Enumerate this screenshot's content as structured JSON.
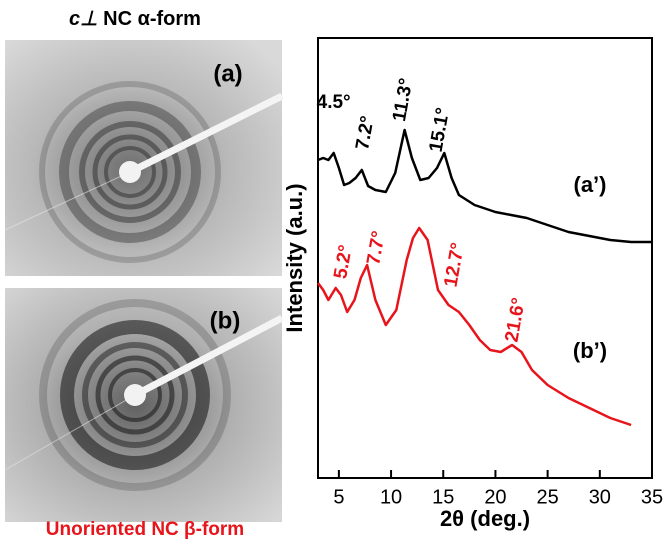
{
  "caption_top": {
    "symbol": "c⊥",
    "text": "NC α-form"
  },
  "images": [
    {
      "label": "(a)"
    },
    {
      "label": "(b)"
    }
  ],
  "caption_bottom": "Unoriented NC β-form",
  "chart_data": {
    "type": "line",
    "xlabel": "2θ (deg.)",
    "ylabel": "Intensity (a.u.)",
    "xlim": [
      3,
      35
    ],
    "xticks": [
      5,
      10,
      15,
      20,
      25,
      30,
      35
    ],
    "ylim": [
      0,
      440
    ],
    "series": [
      {
        "name": "(a’)",
        "color": "#000000",
        "x": [
          3,
          3.5,
          4,
          4.5,
          5,
          5.5,
          6,
          6.6,
          7.2,
          7.8,
          8.5,
          9.5,
          10.4,
          11.3,
          12,
          12.8,
          13.6,
          14.4,
          15.1,
          15.8,
          16.5,
          18,
          20,
          21.5,
          23,
          25,
          27,
          29,
          31,
          33,
          35
        ],
        "values": [
          318,
          320,
          318,
          325,
          310,
          293,
          295,
          300,
          308,
          292,
          288,
          286,
          305,
          348,
          320,
          298,
          300,
          310,
          325,
          300,
          283,
          273,
          266,
          263,
          260,
          253,
          246,
          242,
          238,
          236,
          236
        ]
      },
      {
        "name": "(b’)",
        "color": "#e8141b",
        "x": [
          3,
          3.5,
          4,
          4.7,
          5.2,
          5.8,
          6.5,
          7.1,
          7.7,
          8.5,
          9.5,
          10.5,
          11.5,
          12.1,
          12.7,
          13.5,
          14.5,
          15.5,
          16.5,
          17.5,
          18.5,
          19.5,
          20.5,
          21.6,
          22.5,
          23.5,
          25,
          27,
          29,
          31,
          33
        ],
        "values": [
          195,
          188,
          178,
          190,
          183,
          166,
          178,
          200,
          213,
          178,
          153,
          168,
          218,
          240,
          250,
          238,
          188,
          173,
          166,
          153,
          138,
          128,
          126,
          133,
          126,
          108,
          93,
          80,
          70,
          60,
          53
        ]
      }
    ],
    "annotations": [
      {
        "text": "4.5°",
        "x": 4.5,
        "series": 0
      },
      {
        "text": "7.2°",
        "x": 7.2,
        "series": 0
      },
      {
        "text": "11.3°",
        "x": 11.3,
        "series": 0
      },
      {
        "text": "15.1°",
        "x": 15.1,
        "series": 0
      },
      {
        "text": "5.2°",
        "x": 5.2,
        "series": 1
      },
      {
        "text": "7.7°",
        "x": 7.7,
        "series": 1
      },
      {
        "text": "12.7°",
        "x": 12.7,
        "series": 1
      },
      {
        "text": "21.6°",
        "x": 21.6,
        "series": 1
      }
    ]
  }
}
